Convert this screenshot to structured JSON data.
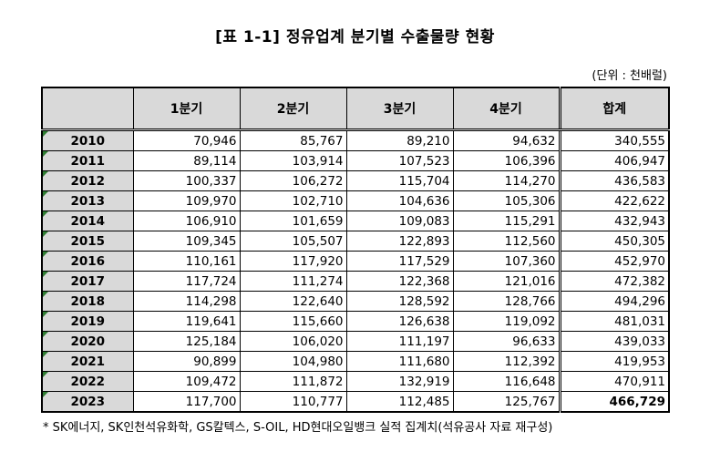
{
  "title": "[표 1-1] 정유업계 분기별 수출물량 현황",
  "unit": "(단위 : 천배럴)",
  "columns": [
    "1분기",
    "2분기",
    "3분기",
    "4분기",
    "합계"
  ],
  "rows": [
    {
      "year": "2010",
      "q1": "70,946",
      "q2": "85,767",
      "q3": "89,210",
      "q4": "94,632",
      "total": "340,555"
    },
    {
      "year": "2011",
      "q1": "89,114",
      "q2": "103,914",
      "q3": "107,523",
      "q4": "106,396",
      "total": "406,947"
    },
    {
      "year": "2012",
      "q1": "100,337",
      "q2": "106,272",
      "q3": "115,704",
      "q4": "114,270",
      "total": "436,583"
    },
    {
      "year": "2013",
      "q1": "109,970",
      "q2": "102,710",
      "q3": "104,636",
      "q4": "105,306",
      "total": "422,622"
    },
    {
      "year": "2014",
      "q1": "106,910",
      "q2": "101,659",
      "q3": "109,083",
      "q4": "115,291",
      "total": "432,943"
    },
    {
      "year": "2015",
      "q1": "109,345",
      "q2": "105,507",
      "q3": "122,893",
      "q4": "112,560",
      "total": "450,305"
    },
    {
      "year": "2016",
      "q1": "110,161",
      "q2": "117,920",
      "q3": "117,529",
      "q4": "107,360",
      "total": "452,970"
    },
    {
      "year": "2017",
      "q1": "117,724",
      "q2": "111,274",
      "q3": "122,368",
      "q4": "121,016",
      "total": "472,382"
    },
    {
      "year": "2018",
      "q1": "114,298",
      "q2": "122,640",
      "q3": "128,592",
      "q4": "128,766",
      "total": "494,296"
    },
    {
      "year": "2019",
      "q1": "119,641",
      "q2": "115,660",
      "q3": "126,638",
      "q4": "119,092",
      "total": "481,031"
    },
    {
      "year": "2020",
      "q1": "125,184",
      "q2": "106,020",
      "q3": "111,197",
      "q4": "96,633",
      "total": "439,033"
    },
    {
      "year": "2021",
      "q1": "90,899",
      "q2": "104,980",
      "q3": "111,680",
      "q4": "112,392",
      "total": "419,953"
    },
    {
      "year": "2022",
      "q1": "109,472",
      "q2": "111,872",
      "q3": "132,919",
      "q4": "116,648",
      "total": "470,911"
    },
    {
      "year": "2023",
      "q1": "117,700",
      "q2": "110,777",
      "q3": "112,485",
      "q4": "125,767",
      "total": "466,729"
    }
  ],
  "footnote": "* SK에너지, SK인천석유화학, GS칼텍스, S-OIL, HD현대오일뱅크 실적 집계치(석유공사 자료 재구성)",
  "colors": {
    "header_bg": "#d9d9d9",
    "corner_mark": "#2f7d32"
  }
}
